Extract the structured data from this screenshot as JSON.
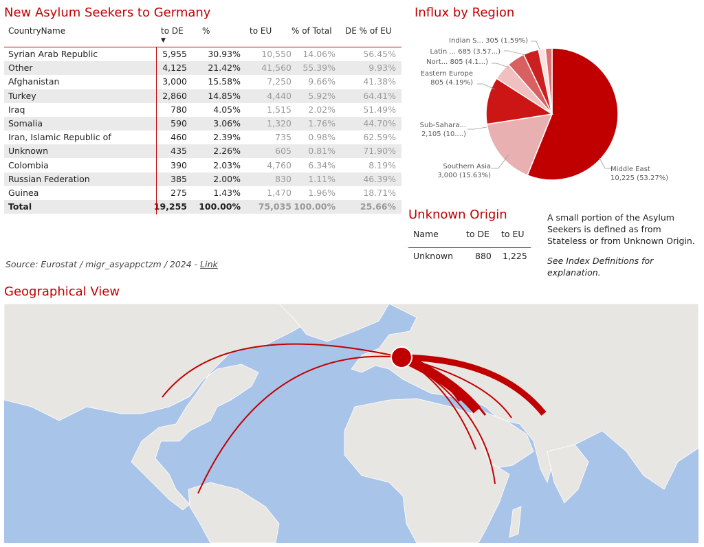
{
  "main_title": "New Asylum Seekers to Germany",
  "table": {
    "headers": {
      "country": "CountryName",
      "to_de": "to DE",
      "pct": "%",
      "to_eu": "to EU",
      "pct_total": "% of Total",
      "de_pct_eu": "DE % of EU"
    },
    "rows": [
      {
        "country": "Syrian Arab Republic",
        "to_de": "5,955",
        "pct": "30.93%",
        "to_eu": "10,550",
        "pct_total": "14.06%",
        "de_pct_eu": "56.45%"
      },
      {
        "country": "Other",
        "to_de": "4,125",
        "pct": "21.42%",
        "to_eu": "41,560",
        "pct_total": "55.39%",
        "de_pct_eu": "9.93%"
      },
      {
        "country": "Afghanistan",
        "to_de": "3,000",
        "pct": "15.58%",
        "to_eu": "7,250",
        "pct_total": "9.66%",
        "de_pct_eu": "41.38%"
      },
      {
        "country": "Turkey",
        "to_de": "2,860",
        "pct": "14.85%",
        "to_eu": "4,440",
        "pct_total": "5.92%",
        "de_pct_eu": "64.41%"
      },
      {
        "country": "Iraq",
        "to_de": "780",
        "pct": "4.05%",
        "to_eu": "1,515",
        "pct_total": "2.02%",
        "de_pct_eu": "51.49%"
      },
      {
        "country": "Somalia",
        "to_de": "590",
        "pct": "3.06%",
        "to_eu": "1,320",
        "pct_total": "1.76%",
        "de_pct_eu": "44.70%"
      },
      {
        "country": "Iran, Islamic Republic of",
        "to_de": "460",
        "pct": "2.39%",
        "to_eu": "735",
        "pct_total": "0.98%",
        "de_pct_eu": "62.59%"
      },
      {
        "country": "Unknown",
        "to_de": "435",
        "pct": "2.26%",
        "to_eu": "605",
        "pct_total": "0.81%",
        "de_pct_eu": "71.90%"
      },
      {
        "country": "Colombia",
        "to_de": "390",
        "pct": "2.03%",
        "to_eu": "4,760",
        "pct_total": "6.34%",
        "de_pct_eu": "8.19%"
      },
      {
        "country": "Russian Federation",
        "to_de": "385",
        "pct": "2.00%",
        "to_eu": "830",
        "pct_total": "1.11%",
        "de_pct_eu": "46.39%"
      },
      {
        "country": "Guinea",
        "to_de": "275",
        "pct": "1.43%",
        "to_eu": "1,470",
        "pct_total": "1.96%",
        "de_pct_eu": "18.71%"
      }
    ],
    "total": {
      "country": "Total",
      "to_de": "19,255",
      "pct": "100.00%",
      "to_eu": "75,035",
      "pct_total": "100.00%",
      "de_pct_eu": "25.66%"
    }
  },
  "source": {
    "text": "Source: Eurostat / migr_asyappctzm / 2024 - ",
    "link": "Link"
  },
  "pie": {
    "title": "Influx by Region",
    "colors": [
      "#c00000",
      "#e8b0b0",
      "#cc1515",
      "#f0c0c0",
      "#d96060",
      "#cc2020",
      "#fde0e0",
      "#e07070"
    ]
  },
  "chart_data": {
    "type": "pie",
    "title": "Influx by Region",
    "slices": [
      {
        "label": "Middle East",
        "value": 10225,
        "text": "10,225 (53.27%)"
      },
      {
        "label": "Southern Asia",
        "value": 3000,
        "text": "3,000 (15.63%)"
      },
      {
        "label": "Sub-Sahara...",
        "value": 2105,
        "text": "2,105 (10....)"
      },
      {
        "label": "Eastern Europe",
        "value": 805,
        "text": "805 (4.19%)"
      },
      {
        "label": "Nort...",
        "value": 805,
        "text": "805 (4.1...)"
      },
      {
        "label": "Latin ...",
        "value": 685,
        "text": "685 (3.57...)"
      },
      {
        "label": "Indian S...",
        "value": 305,
        "text": "305 (1.59%)"
      },
      {
        "label": "",
        "value": 300,
        "text": ""
      }
    ]
  },
  "unknown_origin": {
    "title": "Unknown Origin",
    "headers": {
      "name": "Name",
      "to_de": "to DE",
      "to_eu": "to EU"
    },
    "row": {
      "name": "Unknown",
      "to_de": "880",
      "to_eu": "1,225"
    }
  },
  "note": {
    "text": "A small portion of the Asylum Seekers is defined as from Stateless or from Unknown Origin.",
    "italic": "See Index Definitions for explanation."
  },
  "geo_title": "Geographical View",
  "map": {
    "ocean": "#a9c4e9",
    "land": "#e8e6e2",
    "flow": "#c00000"
  }
}
